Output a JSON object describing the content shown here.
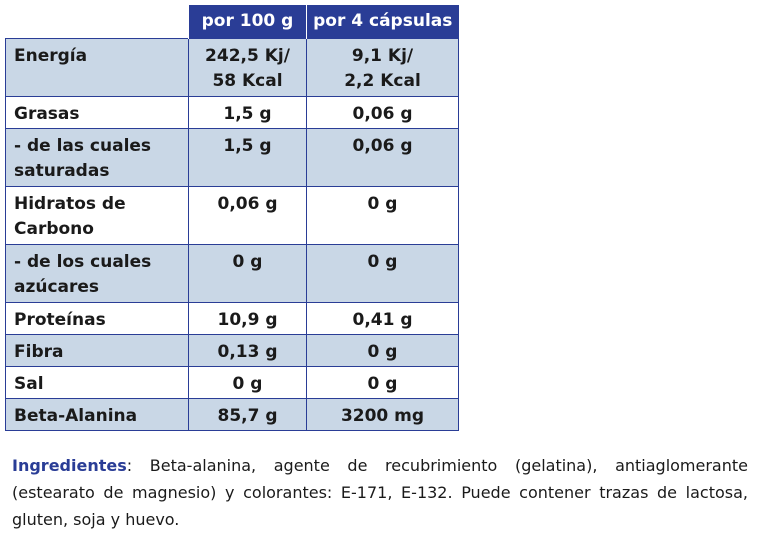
{
  "table": {
    "headers": [
      "",
      "por 100 g",
      "por 4 cápsulas"
    ],
    "rows": [
      {
        "label": [
          "Energía"
        ],
        "per100": [
          "242,5 Kj/",
          "58 Kcal"
        ],
        "per4": [
          "9,1 Kj/",
          "2,2 Kcal"
        ],
        "shade": "shaded"
      },
      {
        "label": [
          "Grasas"
        ],
        "per100": [
          "1,5 g"
        ],
        "per4": [
          "0,06 g"
        ],
        "shade": "white"
      },
      {
        "label": [
          "- de las cuales",
          "saturadas"
        ],
        "per100": [
          "1,5 g"
        ],
        "per4": [
          "0,06 g"
        ],
        "shade": "shaded"
      },
      {
        "label": [
          "Hidratos de",
          "Carbono"
        ],
        "per100": [
          "0,06 g"
        ],
        "per4": [
          "0 g"
        ],
        "shade": "white"
      },
      {
        "label": [
          "- de los cuales",
          "azúcares"
        ],
        "per100": [
          "0 g"
        ],
        "per4": [
          "0 g"
        ],
        "shade": "shaded"
      },
      {
        "label": [
          "Proteínas"
        ],
        "per100": [
          "10,9 g"
        ],
        "per4": [
          "0,41 g"
        ],
        "shade": "white"
      },
      {
        "label": [
          "Fibra"
        ],
        "per100": [
          "0,13 g"
        ],
        "per4": [
          "0 g"
        ],
        "shade": "shaded"
      },
      {
        "label": [
          "Sal"
        ],
        "per100": [
          "0 g"
        ],
        "per4": [
          "0 g"
        ],
        "shade": "white"
      },
      {
        "label": [
          "Beta-Alanina"
        ],
        "per100": [
          "85,7 g"
        ],
        "per4": [
          "3200 mg"
        ],
        "shade": "shaded"
      }
    ]
  },
  "ingredients": {
    "label": "Ingredientes",
    "text": ": Beta-alanina, agente de recubrimiento (gelatina), antiaglomerante (estearato de magnesio) y colorantes: E-171, E-132. Puede contener trazas de lactosa, gluten, soja y huevo."
  },
  "colors": {
    "header_bg": "#2a3d96",
    "shaded_row": "#c9d7e6",
    "ingredient_label": "#2a3d96"
  }
}
